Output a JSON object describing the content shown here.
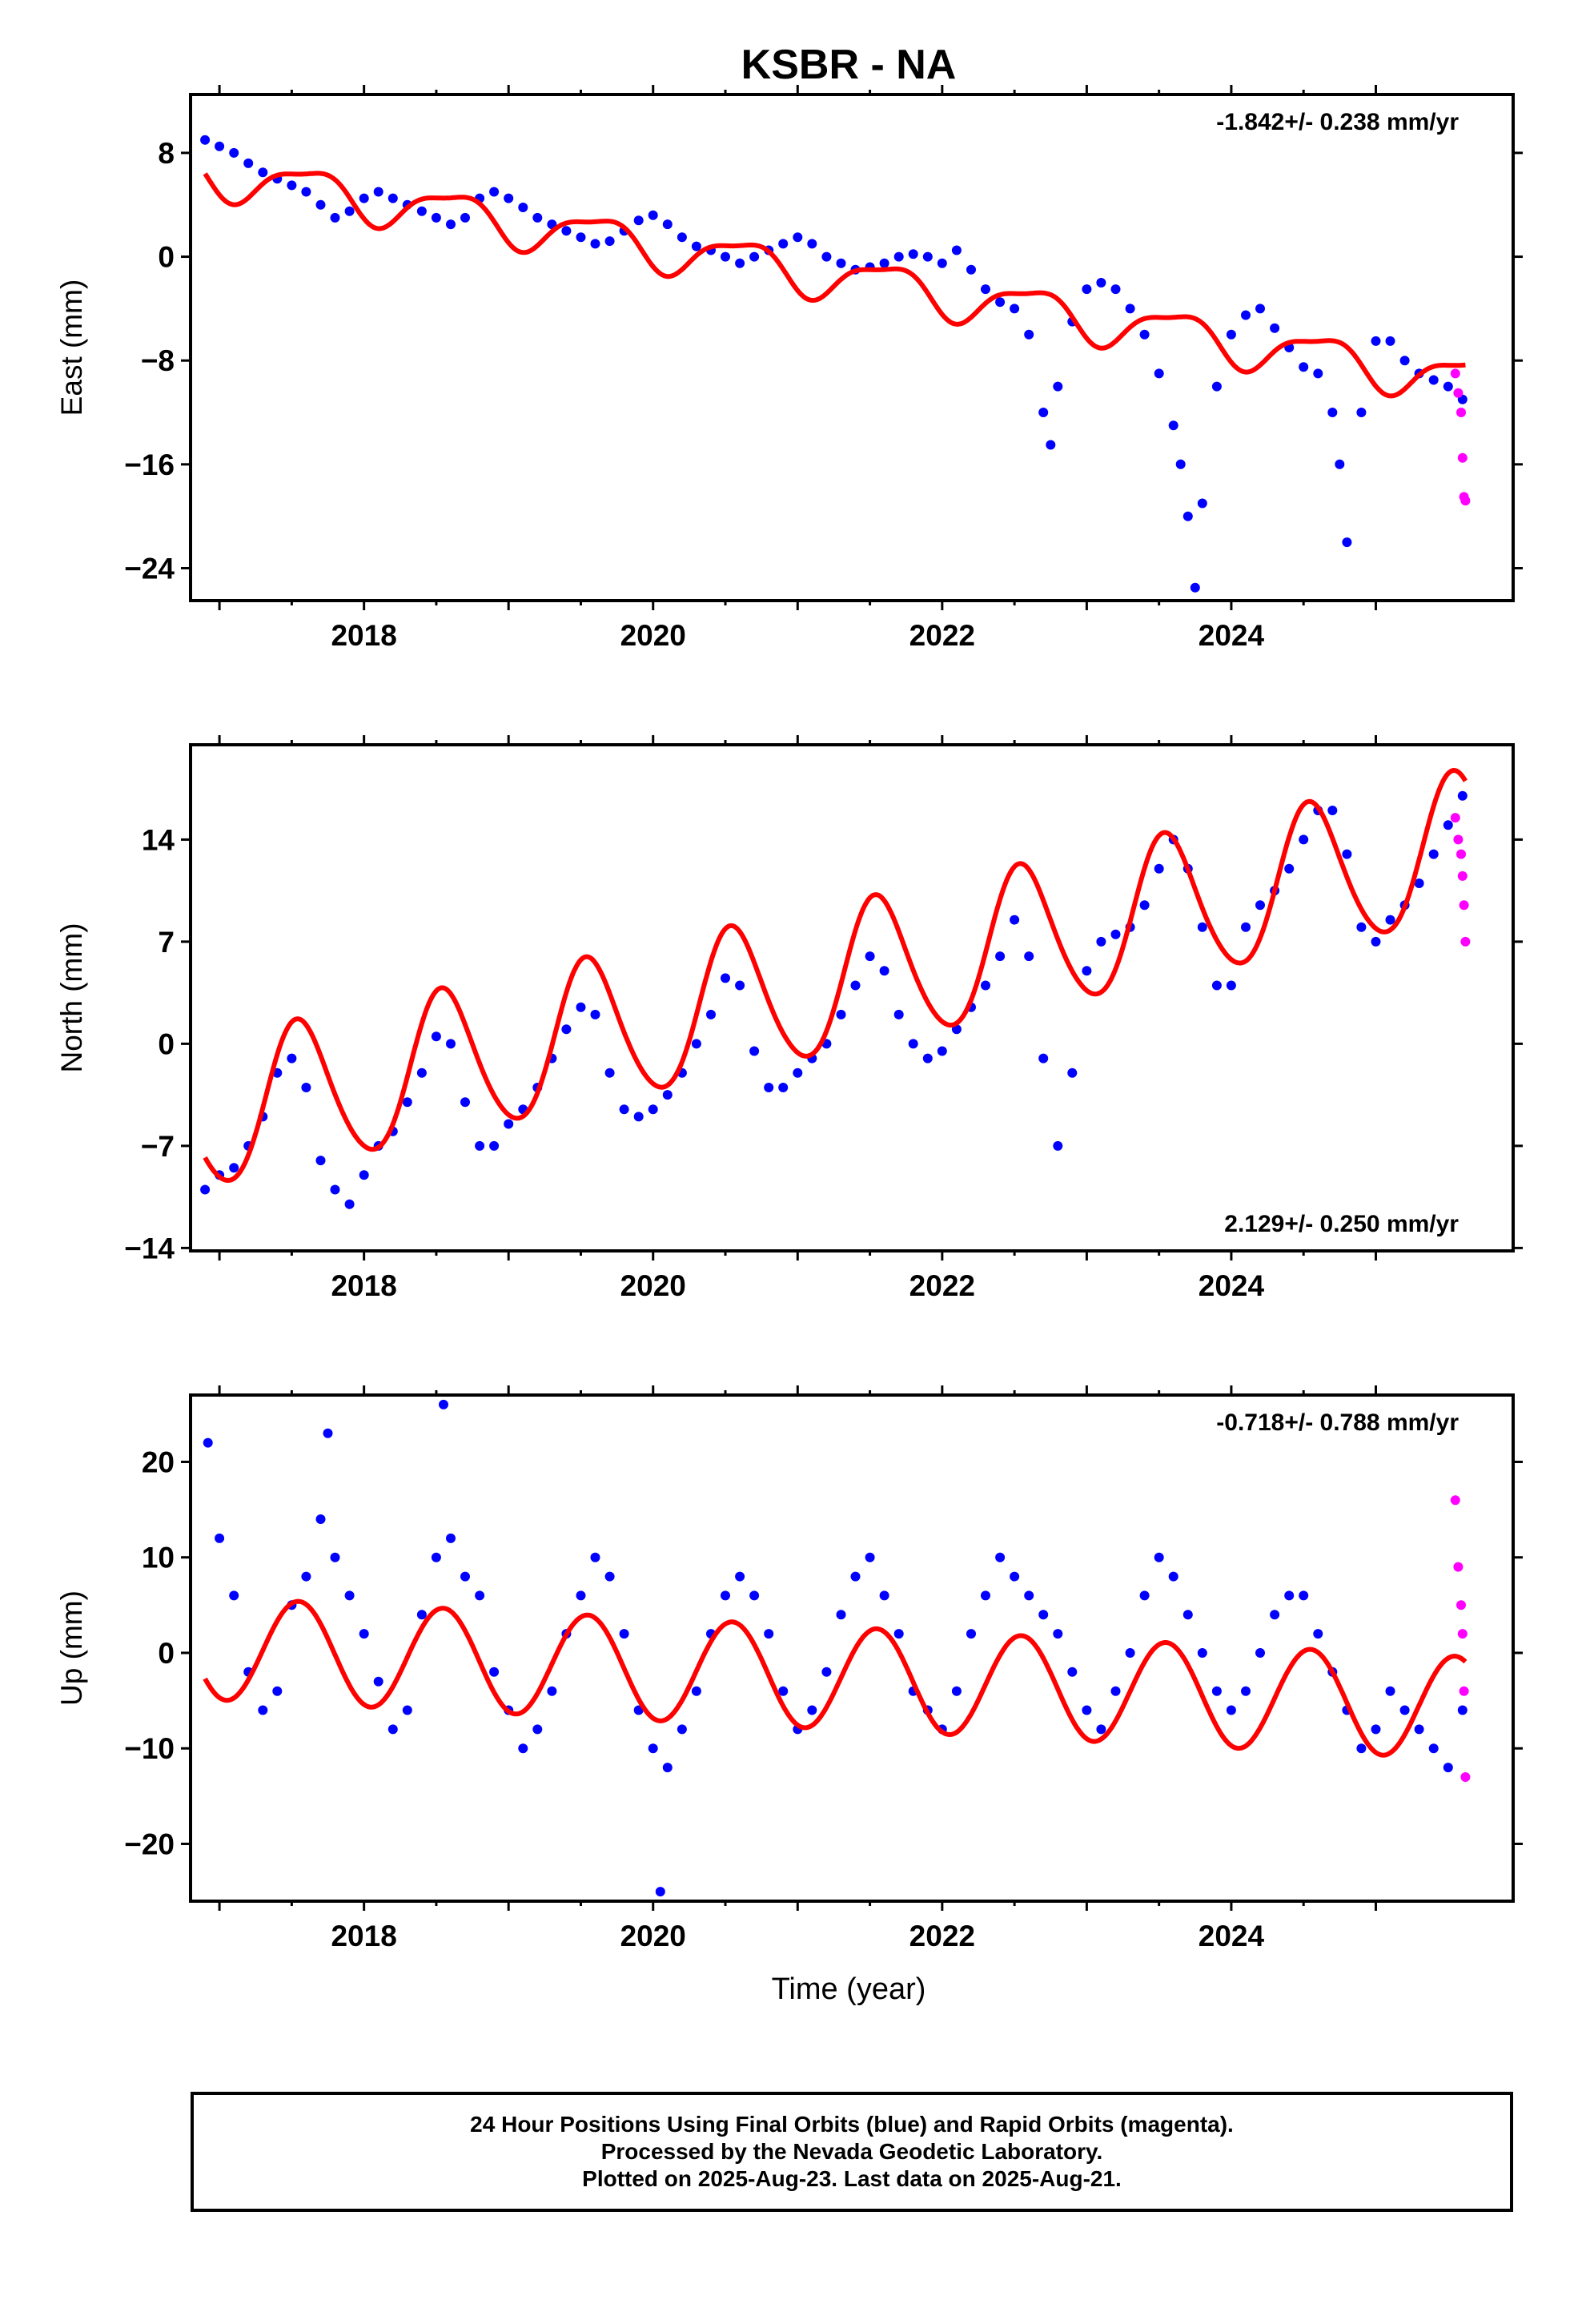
{
  "title": "KSBR - NA",
  "xlabel": "Time (year)",
  "footer": {
    "line1": "24 Hour Positions Using Final Orbits (blue) and Rapid Orbits (magenta).",
    "line2": "Processed by the Nevada Geodetic Laboratory.",
    "line3": "Plotted on 2025-Aug-23. Last data on 2025-Aug-21."
  },
  "colors": {
    "final": "#0000ff",
    "rapid": "#ff00ff",
    "model": "#ff0000",
    "frame": "#000000"
  },
  "chart_data": [
    {
      "type": "scatter",
      "component": "East",
      "ylabel": "East (mm)",
      "rate_text": "-1.842+/- 0.238 mm/yr",
      "rate_position": "top-right",
      "xlim": [
        2016.8,
        2025.95
      ],
      "ylim": [
        -26.5,
        12.5
      ],
      "xticks": [
        2018,
        2020,
        2022,
        2024
      ],
      "yticks": [
        8,
        0,
        -8,
        -16,
        -24
      ],
      "model": {
        "t0": 2016.9,
        "y0": 6.5,
        "rate": -1.842,
        "annual": [
          -1.6,
          -0.4
        ],
        "semiannual": [
          -0.4,
          0.3
        ]
      },
      "series": [
        {
          "name": "Final",
          "color": "#0000ff",
          "x": [
            2016.9,
            2017.0,
            2017.1,
            2017.2,
            2017.3,
            2017.4,
            2017.5,
            2017.6,
            2017.7,
            2017.8,
            2017.9,
            2018.0,
            2018.1,
            2018.2,
            2018.3,
            2018.4,
            2018.5,
            2018.6,
            2018.7,
            2018.8,
            2018.9,
            2019.0,
            2019.1,
            2019.2,
            2019.3,
            2019.4,
            2019.5,
            2019.6,
            2019.7,
            2019.8,
            2019.9,
            2020.0,
            2020.1,
            2020.2,
            2020.3,
            2020.4,
            2020.5,
            2020.6,
            2020.7,
            2020.8,
            2020.9,
            2021.0,
            2021.1,
            2021.2,
            2021.3,
            2021.4,
            2021.5,
            2021.6,
            2021.7,
            2021.8,
            2021.9,
            2022.0,
            2022.1,
            2022.2,
            2022.3,
            2022.4,
            2022.5,
            2022.6,
            2022.7,
            2022.75,
            2022.8,
            2022.9,
            2023.0,
            2023.1,
            2023.2,
            2023.3,
            2023.4,
            2023.5,
            2023.6,
            2023.65,
            2023.7,
            2023.75,
            2023.8,
            2023.9,
            2024.0,
            2024.1,
            2024.2,
            2024.3,
            2024.4,
            2024.5,
            2024.6,
            2024.7,
            2024.75,
            2024.8,
            2024.9,
            2025.0,
            2025.1,
            2025.2,
            2025.3,
            2025.4,
            2025.5,
            2025.6
          ],
          "y": [
            9.0,
            8.5,
            8.0,
            7.2,
            6.5,
            6.0,
            5.5,
            5.0,
            4.0,
            3.0,
            3.5,
            4.5,
            5.0,
            4.5,
            4.0,
            3.5,
            3.0,
            2.5,
            3.0,
            4.5,
            5.0,
            4.5,
            3.8,
            3.0,
            2.5,
            2.0,
            1.5,
            1.0,
            1.2,
            2.0,
            2.8,
            3.2,
            2.5,
            1.5,
            0.8,
            0.5,
            0.0,
            -0.5,
            0.0,
            0.5,
            1.0,
            1.5,
            1.0,
            0.0,
            -0.5,
            -1.0,
            -0.8,
            -0.5,
            0.0,
            0.2,
            0.0,
            -0.5,
            0.5,
            -1.0,
            -2.5,
            -3.5,
            -4.0,
            -6.0,
            -12.0,
            -14.5,
            -10.0,
            -5.0,
            -2.5,
            -2.0,
            -2.5,
            -4.0,
            -6.0,
            -9.0,
            -13.0,
            -16.0,
            -20.0,
            -25.5,
            -19.0,
            -10.0,
            -6.0,
            -4.5,
            -4.0,
            -5.5,
            -7.0,
            -8.5,
            -9.0,
            -12.0,
            -16.0,
            -22.0,
            -12.0,
            -6.5,
            -6.5,
            -8.0,
            -9.0,
            -9.5,
            -10.0,
            -11.0
          ]
        },
        {
          "name": "Rapid",
          "color": "#ff00ff",
          "x": [
            2025.55,
            2025.57,
            2025.59,
            2025.6,
            2025.61,
            2025.62
          ],
          "y": [
            -9.0,
            -10.5,
            -12.0,
            -15.5,
            -18.5,
            -18.8
          ]
        }
      ]
    },
    {
      "type": "scatter",
      "component": "North",
      "ylabel": "North (mm)",
      "rate_text": "2.129+/- 0.250 mm/yr",
      "rate_position": "bottom-right",
      "xlim": [
        2016.8,
        2025.95
      ],
      "ylim": [
        -14.2,
        20.5
      ],
      "xticks": [
        2018,
        2020,
        2022,
        2024
      ],
      "yticks": [
        14,
        7,
        0,
        -7,
        -14
      ],
      "model": {
        "t0": 2016.9,
        "y0": -5.0,
        "rate": 2.129,
        "annual": [
          -4.0,
          -3.0
        ],
        "semiannual": [
          0.4,
          0.2
        ]
      },
      "series": [
        {
          "name": "Final",
          "color": "#0000ff",
          "x": [
            2016.9,
            2017.0,
            2017.1,
            2017.2,
            2017.3,
            2017.4,
            2017.5,
            2017.6,
            2017.7,
            2017.8,
            2017.9,
            2018.0,
            2018.1,
            2018.2,
            2018.3,
            2018.4,
            2018.5,
            2018.6,
            2018.7,
            2018.8,
            2018.9,
            2019.0,
            2019.1,
            2019.2,
            2019.3,
            2019.4,
            2019.5,
            2019.6,
            2019.7,
            2019.8,
            2019.9,
            2020.0,
            2020.1,
            2020.2,
            2020.3,
            2020.4,
            2020.5,
            2020.6,
            2020.7,
            2020.8,
            2020.9,
            2021.0,
            2021.1,
            2021.2,
            2021.3,
            2021.4,
            2021.5,
            2021.6,
            2021.7,
            2021.8,
            2021.9,
            2022.0,
            2022.1,
            2022.2,
            2022.3,
            2022.4,
            2022.5,
            2022.6,
            2022.7,
            2022.8,
            2022.9,
            2023.0,
            2023.1,
            2023.2,
            2023.3,
            2023.4,
            2023.5,
            2023.6,
            2023.7,
            2023.8,
            2023.9,
            2024.0,
            2024.1,
            2024.2,
            2024.3,
            2024.4,
            2024.5,
            2024.6,
            2024.7,
            2024.8,
            2024.9,
            2025.0,
            2025.1,
            2025.2,
            2025.3,
            2025.4,
            2025.5,
            2025.6
          ],
          "y": [
            -10.0,
            -9.0,
            -8.5,
            -7.0,
            -5.0,
            -2.0,
            -1.0,
            -3.0,
            -8.0,
            -10.0,
            -11.0,
            -9.0,
            -7.0,
            -6.0,
            -4.0,
            -2.0,
            0.5,
            0.0,
            -4.0,
            -7.0,
            -7.0,
            -5.5,
            -4.5,
            -3.0,
            -1.0,
            1.0,
            2.5,
            2.0,
            -2.0,
            -4.5,
            -5.0,
            -4.5,
            -3.5,
            -2.0,
            0.0,
            2.0,
            4.5,
            4.0,
            -0.5,
            -3.0,
            -3.0,
            -2.0,
            -1.0,
            0.0,
            2.0,
            4.0,
            6.0,
            5.0,
            2.0,
            0.0,
            -1.0,
            -0.5,
            1.0,
            2.5,
            4.0,
            6.0,
            8.5,
            6.0,
            -1.0,
            -7.0,
            -2.0,
            5.0,
            7.0,
            7.5,
            8.0,
            9.5,
            12.0,
            14.0,
            12.0,
            8.0,
            4.0,
            4.0,
            8.0,
            9.5,
            10.5,
            12.0,
            14.0,
            16.0,
            16.0,
            13.0,
            8.0,
            7.0,
            8.5,
            9.5,
            11.0,
            13.0,
            15.0,
            17.0
          ]
        },
        {
          "name": "Rapid",
          "color": "#ff00ff",
          "x": [
            2025.55,
            2025.57,
            2025.59,
            2025.6,
            2025.61,
            2025.62
          ],
          "y": [
            15.5,
            14.0,
            13.0,
            11.5,
            9.5,
            7.0
          ]
        }
      ]
    },
    {
      "type": "scatter",
      "component": "Up",
      "ylabel": "Up (mm)",
      "rate_text": "-0.718+/- 0.788 mm/yr",
      "rate_position": "top-right",
      "xlim": [
        2016.8,
        2025.95
      ],
      "ylim": [
        -26,
        27
      ],
      "xticks": [
        2018,
        2020,
        2022,
        2024
      ],
      "yticks": [
        20,
        10,
        0,
        -10,
        -20
      ],
      "model": {
        "t0": 2016.9,
        "y0": 0.5,
        "rate": -0.718,
        "annual": [
          -4.3,
          -3.2
        ],
        "semiannual": [
          0.0,
          0.0
        ]
      },
      "series": [
        {
          "name": "Final",
          "color": "#0000ff",
          "x": [
            2016.92,
            2017.0,
            2017.1,
            2017.2,
            2017.3,
            2017.4,
            2017.5,
            2017.6,
            2017.7,
            2017.75,
            2017.8,
            2017.9,
            2018.0,
            2018.1,
            2018.2,
            2018.3,
            2018.4,
            2018.5,
            2018.55,
            2018.6,
            2018.7,
            2018.8,
            2018.9,
            2019.0,
            2019.1,
            2019.2,
            2019.3,
            2019.4,
            2019.5,
            2019.6,
            2019.7,
            2019.8,
            2019.9,
            2020.0,
            2020.05,
            2020.1,
            2020.2,
            2020.3,
            2020.4,
            2020.5,
            2020.6,
            2020.7,
            2020.8,
            2020.9,
            2021.0,
            2021.1,
            2021.2,
            2021.3,
            2021.4,
            2021.5,
            2021.6,
            2021.7,
            2021.8,
            2021.9,
            2022.0,
            2022.1,
            2022.2,
            2022.3,
            2022.4,
            2022.5,
            2022.6,
            2022.7,
            2022.8,
            2022.9,
            2023.0,
            2023.1,
            2023.2,
            2023.3,
            2023.4,
            2023.5,
            2023.6,
            2023.7,
            2023.8,
            2023.9,
            2024.0,
            2024.1,
            2024.2,
            2024.3,
            2024.4,
            2024.5,
            2024.6,
            2024.7,
            2024.8,
            2024.9,
            2025.0,
            2025.1,
            2025.2,
            2025.3,
            2025.4,
            2025.5,
            2025.6
          ],
          "y": [
            22.0,
            12.0,
            6.0,
            -2.0,
            -6.0,
            -4.0,
            5.0,
            8.0,
            14.0,
            23.0,
            10.0,
            6.0,
            2.0,
            -3.0,
            -8.0,
            -6.0,
            4.0,
            10.0,
            26.0,
            12.0,
            8.0,
            6.0,
            -2.0,
            -6.0,
            -10.0,
            -8.0,
            -4.0,
            2.0,
            6.0,
            10.0,
            8.0,
            2.0,
            -6.0,
            -10.0,
            -25.0,
            -12.0,
            -8.0,
            -4.0,
            2.0,
            6.0,
            8.0,
            6.0,
            2.0,
            -4.0,
            -8.0,
            -6.0,
            -2.0,
            4.0,
            8.0,
            10.0,
            6.0,
            2.0,
            -4.0,
            -6.0,
            -8.0,
            -4.0,
            2.0,
            6.0,
            10.0,
            8.0,
            6.0,
            4.0,
            2.0,
            -2.0,
            -6.0,
            -8.0,
            -4.0,
            0.0,
            6.0,
            10.0,
            8.0,
            4.0,
            0.0,
            -4.0,
            -6.0,
            -4.0,
            0.0,
            4.0,
            6.0,
            6.0,
            2.0,
            -2.0,
            -6.0,
            -10.0,
            -8.0,
            -4.0,
            -6.0,
            -8.0,
            -10.0,
            -12.0,
            -6.0
          ]
        },
        {
          "name": "Rapid",
          "color": "#ff00ff",
          "x": [
            2025.55,
            2025.57,
            2025.59,
            2025.6,
            2025.61,
            2025.62
          ],
          "y": [
            16.0,
            9.0,
            5.0,
            2.0,
            -4.0,
            -13.0
          ]
        }
      ]
    }
  ]
}
